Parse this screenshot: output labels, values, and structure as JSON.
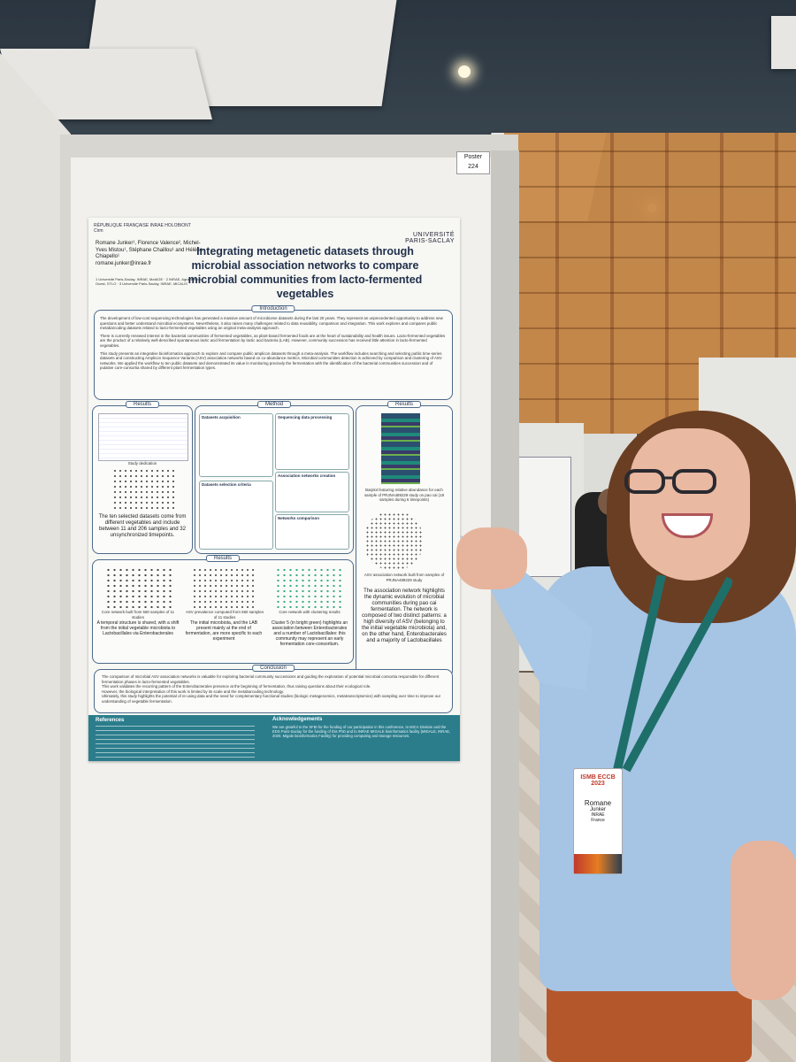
{
  "poster_tag": {
    "line1": "Poster",
    "line2": "224"
  },
  "poster": {
    "logos": "RÉPUBLIQUE FRANÇAISE   INRAE   HOLOBIONT   Cirm",
    "university": "UNIVERSITÉ PARIS-SACLAY",
    "authors": "Romane Junker¹, Florence Valence², Michel-Yves Mistou¹, Stéphane Chaillou¹ and Hélène Chiapello¹",
    "email": "romane.junker@inrae.fr",
    "affiliations": "1 Université Paris-Saclay, INRAE, MaIAGE · 2 INRAE, Agrocampus Ouest, STLO · 3 Université Paris-Saclay, INRAE, MICALIS",
    "title": "Integrating metagenetic datasets through microbial association networks to compare microbial communities from lacto-fermented vegetables",
    "sections": {
      "introduction": "Introduction",
      "results": "Results",
      "method": "Method",
      "conclusion": "Conclusion",
      "references": "References",
      "acknowledgements": "Acknowledgements"
    },
    "intro_p1": "The development of low-cost sequencing technologies has generated a massive amount of microbiome datasets during the last 20 years. They represent an unprecedented opportunity to address new questions and better understand microbial ecosystems. Nevertheless, it also raises many challenges related to data reusability, comparison and integration. This work explores and compares public metabarcoding datasets related to lacto-fermented vegetables using an original meta-analysis approach.",
    "intro_p2": "There is currently renewed interest in the bacterial communities of fermented vegetables, as plant-based fermented foods are at the heart of sustainability and health issues. Lacto-fermented vegetables are the product of a relatively well-described spontaneous lactic acid fermentation by lactic acid bacteria (LAB). However, community succession has received little attention in lacto-fermented vegetables.",
    "intro_p3": "This study presents an integrative bioinformatics approach to explore and compare public amplicon datasets through a meta-analysis. The workflow includes searching and selecting public time-series datasets and constructing Amplicon Sequence Variants (ASV) association networks based on co-abundance metrics. Microbial communities detection is achieved by comparison and clustering of ASV networks. We applied the workflow to ten public datasets and demonstrated its value in monitoring precisely the fermentation with the identification of the bacterial communities succession and of putative core-consortia shared by different plant fermentation types.",
    "method_boxes": [
      "Datasets acquisition",
      "Sequencing data processing",
      "Datasets selection criteria",
      "Association networks creation",
      "Networks comparison"
    ],
    "results1_caption": "The ten selected datasets come from different vegetables and include between 11 and 206 samples and 32 unsynchronized timepoints.",
    "results1_label": "Study dedication",
    "results2_caption1": "Barplot featuring relative abundance for each sample of PRJNA489229 study on pao cai (18 samples during 6 timepoints)",
    "results2_caption2": "ASV association network built from samples of PRJNA489229 study",
    "results2_text": "The association network highlights the dynamic evolution of microbial communities during pao cai fermentation. The network is composed of two distinct patterns: a high diversity of ASV (belonging to the initial vegetable microbiota) and, on the other hand, Enterobacterales and a majority of Lactobacillales",
    "results3_captions": [
      "Core network built from 560 samples of 11 studies",
      "ASV prevalence computed from 560 samples of 11 studies",
      "Core network with clustering results"
    ],
    "results3_texts": [
      "A temporal structure is shared, with a shift from the initial vegetable microbiota to Lactobacillales via Enterobacterales",
      "The initial microbiota, and the LAB present mainly at the end of fermentation, are more specific to each experiment",
      "Cluster 5 (in bright green) highlights an association between Enterobacterales and a number of Lactobacillales: this community may represent an early fermentation core-consortium."
    ],
    "conclusion_items": [
      "The comparison of microbial ASV association networks is valuable for exploring bacterial community successions and guiding the exploration of potential microbial consortia responsible for different fermentation phases in lacto-fermented vegetables.",
      "This work validates the recurring pattern of the Enterobacterales presence at the beginning of fermentation, thus raising questions about their ecological role.",
      "However, the biological interpretation of this work is limited by its scale and the metabarcoding technology.",
      "Ultimately, this study highlights the potential of re-using data and the need for complementary functional studies (biologic metagenomics, metatranscriptomics) with sampling over time to improve our understanding of vegetable fermentation."
    ],
    "acknowledgements_text": "We are grateful to the SFBI for the funding of our participation in this conference, to MICA Division and the EDS Paris-Saclay for the funding of this PhD and to INRAE MIGALE bioinformatics facility (MIGALE, INRAE, 2020. Migale bioinformatics Facility) for providing computing and storage resources."
  },
  "badge": {
    "conference": "ISMB ECCB 2023",
    "name": "Romane",
    "surname": "Junker",
    "role": "INRAE",
    "country": "France"
  },
  "colors": {
    "poster_accent": "#2b7d8c",
    "poster_title": "#1f2f4a",
    "shirt": "#a6c4e4",
    "pants": "#b4582c",
    "hair": "#6a3e22",
    "lanyard": "#1e6f6a"
  }
}
